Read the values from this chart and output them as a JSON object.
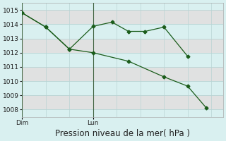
{
  "title": "Pression niveau de la mer( hPa )",
  "line1_x": [
    0,
    1,
    2,
    3,
    3.8,
    4.5,
    5.2,
    6.0,
    7.0
  ],
  "line1_y": [
    1014.8,
    1013.8,
    1012.25,
    1013.85,
    1014.15,
    1013.5,
    1013.5,
    1013.8,
    1011.75
  ],
  "line2_x": [
    0,
    1,
    2,
    3,
    4.5,
    6.0,
    7.0,
    7.8
  ],
  "line2_y": [
    1014.8,
    1013.8,
    1012.25,
    1012.0,
    1011.4,
    1010.3,
    1009.65,
    1008.1
  ],
  "dim_x": 0,
  "lun_x": 3,
  "ylim": [
    1007.5,
    1015.5
  ],
  "yticks": [
    1008,
    1009,
    1010,
    1011,
    1012,
    1013,
    1014,
    1015
  ],
  "xlim": [
    0,
    8.5
  ],
  "line_color": "#1a5c1a",
  "marker": "D",
  "markersize": 2.5,
  "bg_color": "#d9f0f0",
  "grid_major_color": "#b8d4d4",
  "grid_minor_color": "#c8e0e0",
  "title_fontsize": 8.5,
  "tick_fontsize": 6.5
}
